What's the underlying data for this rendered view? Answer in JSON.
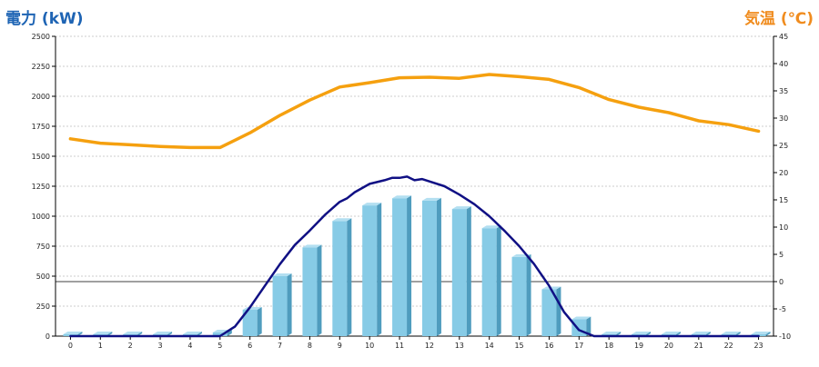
{
  "chart_data": {
    "type": "bar+line",
    "x_ticks": [
      "0",
      "1",
      "2",
      "3",
      "4",
      "5",
      "6",
      "7",
      "8",
      "9",
      "10",
      "11",
      "12",
      "13",
      "14",
      "15",
      "16",
      "17",
      "18",
      "19",
      "20",
      "21",
      "22",
      "23"
    ],
    "left_axis": {
      "title": "電力 (kW)",
      "min": 0,
      "max": 2500,
      "ticks": [
        "0",
        "250",
        "500",
        "750",
        "1000",
        "1250",
        "1500",
        "1750",
        "2000",
        "2250",
        "2500"
      ]
    },
    "right_axis": {
      "title": "気温 (℃)",
      "min": -10,
      "max": 45,
      "ticks": [
        "-10",
        "-5",
        "0",
        "5",
        "10",
        "15",
        "20",
        "25",
        "30",
        "35",
        "40",
        "45"
      ]
    },
    "grid": true,
    "series": [
      {
        "kind": "bar",
        "axis": "left",
        "x": [
          0,
          1,
          2,
          3,
          4,
          5,
          6,
          7,
          8,
          9,
          10,
          11,
          12,
          13,
          14,
          15,
          16,
          17,
          18,
          19,
          20,
          21,
          22,
          23
        ],
        "values": [
          15,
          15,
          15,
          15,
          15,
          30,
          220,
          500,
          740,
          960,
          1090,
          1150,
          1130,
          1060,
          900,
          660,
          390,
          140,
          15,
          15,
          15,
          15,
          15,
          15
        ]
      },
      {
        "kind": "line",
        "axis": "left",
        "x": [
          0,
          4,
          5,
          5.5,
          6,
          6.5,
          7,
          7.5,
          8,
          8.5,
          9,
          9.25,
          9.5,
          10,
          10.5,
          10.75,
          11,
          11.25,
          11.5,
          11.75,
          12,
          12.5,
          13,
          13.5,
          14,
          14.5,
          15,
          15.5,
          16,
          16.5,
          17,
          17.5,
          18,
          23
        ],
        "values": [
          0,
          0,
          0,
          80,
          240,
          420,
          600,
          760,
          880,
          1010,
          1120,
          1150,
          1200,
          1270,
          1300,
          1320,
          1320,
          1330,
          1300,
          1310,
          1290,
          1250,
          1180,
          1100,
          1000,
          880,
          750,
          600,
          420,
          200,
          50,
          0,
          0,
          0
        ]
      },
      {
        "kind": "line",
        "axis": "right",
        "x": [
          0,
          1,
          2,
          3,
          4,
          5,
          6,
          7,
          8,
          9,
          10,
          11,
          12,
          13,
          14,
          15,
          16,
          17,
          18,
          19,
          20,
          21,
          22,
          23
        ],
        "values": [
          26.2,
          25.4,
          25.1,
          24.8,
          24.6,
          24.6,
          27.3,
          30.5,
          33.3,
          35.7,
          36.5,
          37.4,
          37.5,
          37.3,
          38,
          37.6,
          37.1,
          35.6,
          33.4,
          32,
          31,
          29.5,
          28.8,
          27.6
        ]
      }
    ],
    "colors": {
      "bar_face": "#87cbe6",
      "bar_side": "#4f9cbe",
      "bar_top": "#b3dff1",
      "power_line": "#101084",
      "temp_line": "#f5a00f",
      "left_title": "#1e64b4",
      "right_title": "#f08c1e",
      "grid": "#bfbfbf",
      "zero_line": "#000000"
    }
  }
}
